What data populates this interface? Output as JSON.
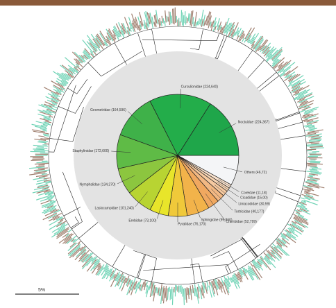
{
  "chart_data": {
    "type": "pie",
    "categories": [
      "Others (46,72)",
      "Coreidae (11,18)",
      "Cicadidae (15,00)",
      "Limacodidae (30,59)",
      "Tortricidae (40,177)",
      "Crambidae (52,799)",
      "Sphingidae (99,860)",
      "Pyralidae (76,170)",
      "Erebidae (73,100)",
      "Lasiocampidae (101,240)",
      "Nymphalidae (134,270)",
      "Staphylinidae (172,600)",
      "Geometridae (164,596)",
      "Curculionidae (224,640)",
      "Noctuidae (224,367)"
    ],
    "values": [
      8,
      1,
      1,
      1.5,
      2,
      3,
      6,
      5,
      5,
      7,
      7,
      9,
      12,
      16.5,
      16
    ],
    "colors": [
      "#f4f5f7",
      "#fae3cf",
      "#f7d5b5",
      "#f5c9a0",
      "#f2b883",
      "#f0a860",
      "#f2b34a",
      "#f0c93a",
      "#e8e52a",
      "#b8d432",
      "#8cc63f",
      "#5fbb46",
      "#3fb149",
      "#23ad4a",
      "#1fa64a"
    ],
    "scale_label": "5%"
  }
}
